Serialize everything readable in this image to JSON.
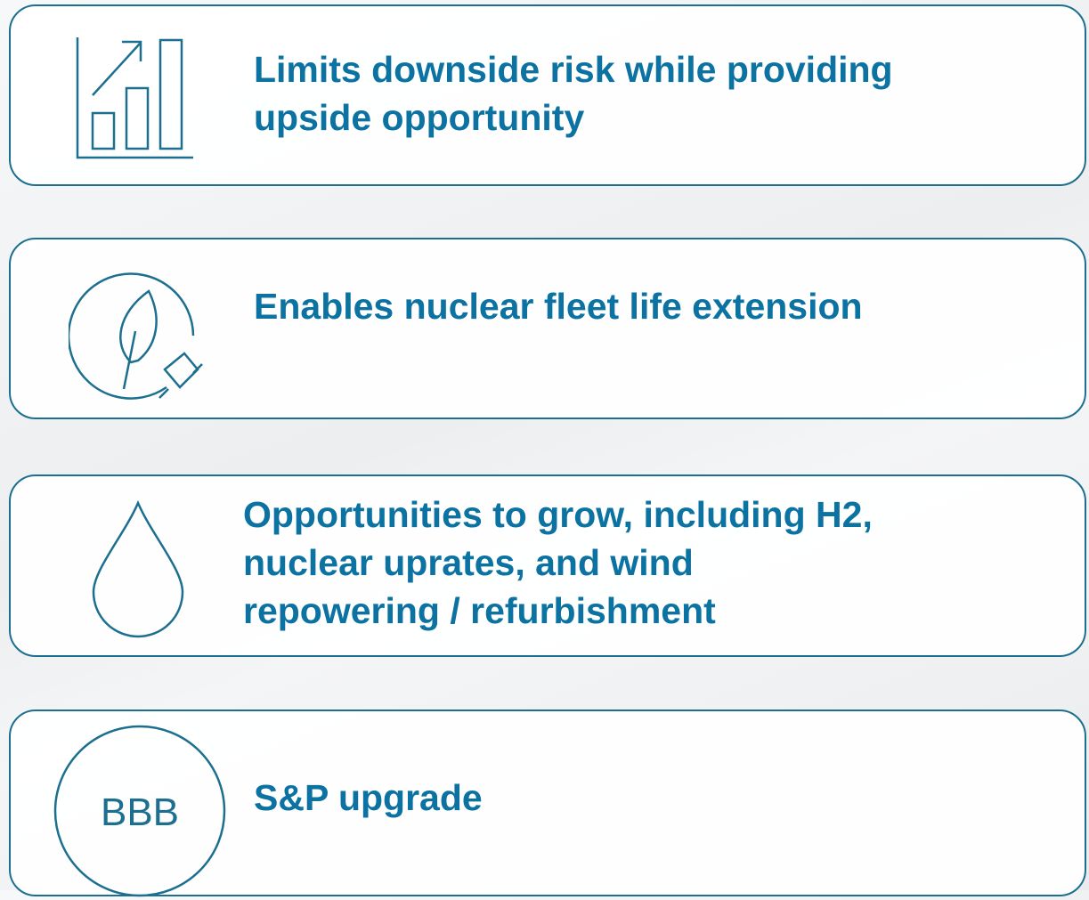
{
  "items": [
    {
      "lines": [
        "Limits downside risk while providing",
        "upside opportunity"
      ]
    },
    {
      "lines": [
        "Enables nuclear fleet life extension"
      ]
    },
    {
      "lines": [
        "Opportunities to grow, including H2,",
        "nuclear uprates, and wind",
        "repowering / refurbishment"
      ]
    },
    {
      "lines": [
        "S&P upgrade"
      ],
      "badge": "BBB"
    }
  ]
}
